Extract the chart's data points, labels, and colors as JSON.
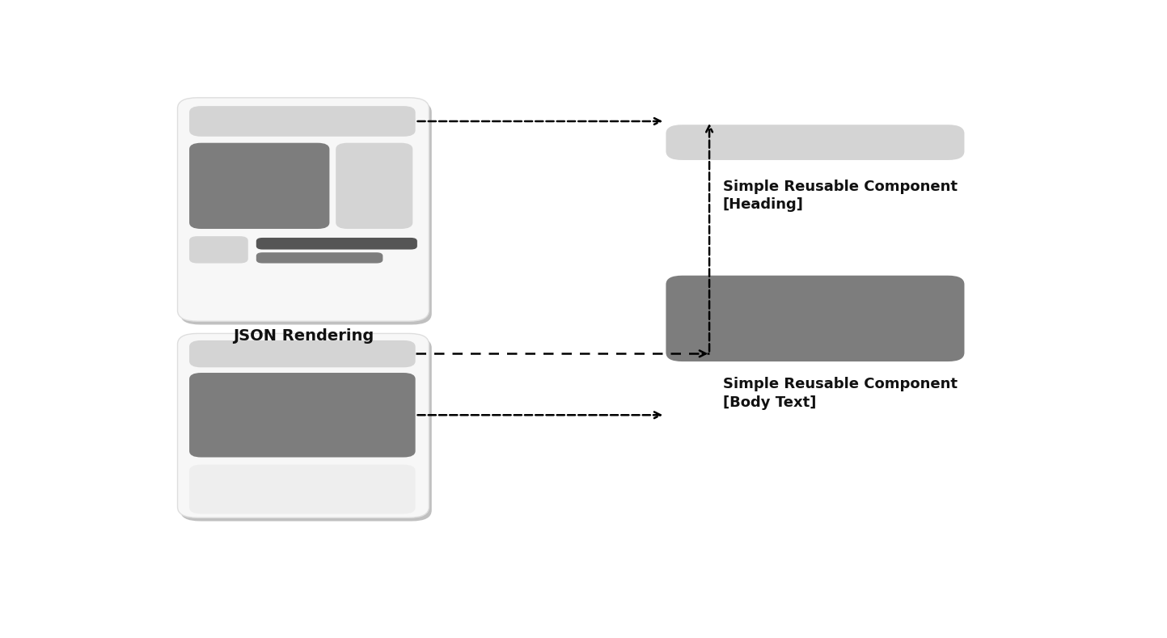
{
  "bg_color": "#ffffff",
  "dark_gray": "#7d7d7d",
  "darkest_gray": "#555555",
  "light_gray": "#d4d4d4",
  "very_light_gray": "#eeeeee",
  "card_bg": "#f7f7f7",
  "card_edge": "#dedede",
  "shadow_color": "#c0c0c0",
  "label_json": "JSON Rendering",
  "label_heading": "Simple Reusable Component\n[Heading]",
  "label_body": "Simple Reusable Component\n[Body Text]"
}
